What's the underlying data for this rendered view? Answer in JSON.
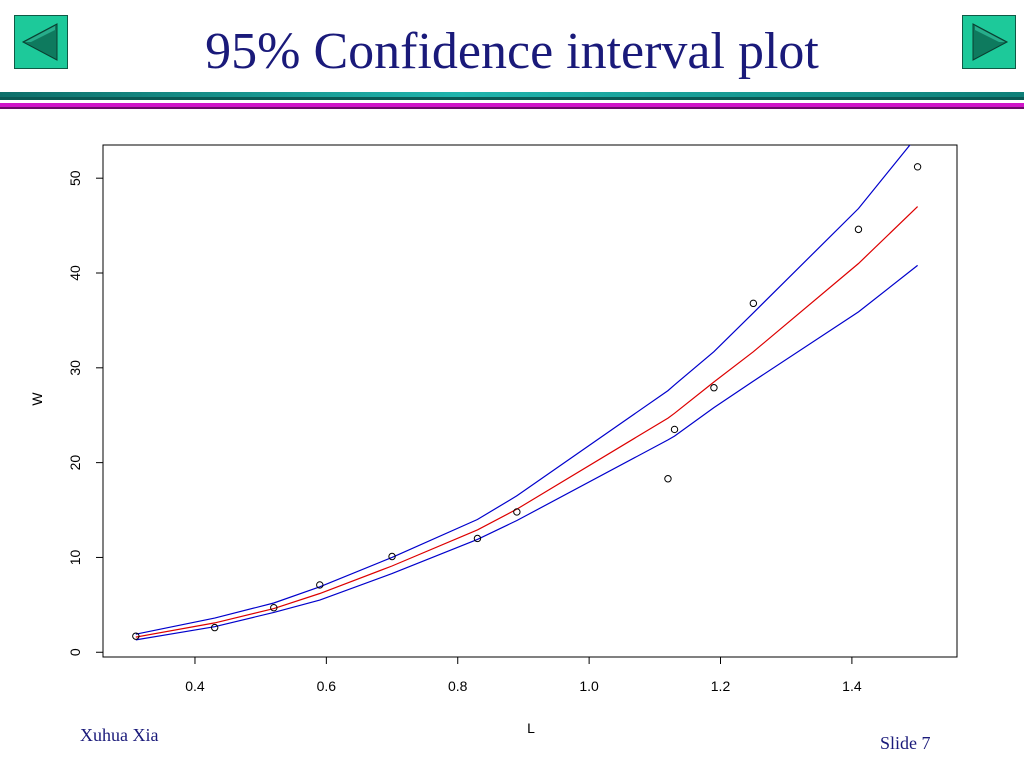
{
  "slide": {
    "title": "95% Confidence interval plot",
    "author": "Xuhua Xia",
    "slide_number": "Slide 7",
    "colors": {
      "title": "#1a1a7a",
      "nav_button": "#1dc99a",
      "nav_arrow": "#0e7a5e",
      "bar_teal": "#1fb5ad",
      "bar_magenta": "#d014c8"
    },
    "nav": {
      "prev_icon": "left-triangle-icon",
      "next_icon": "right-triangle-icon"
    }
  },
  "chart_data": {
    "type": "scatter",
    "title": "",
    "xlabel": "L",
    "ylabel": "W",
    "xlim": [
      0.26,
      1.56
    ],
    "ylim": [
      -0.5,
      53.5
    ],
    "xticks": [
      0.4,
      0.6,
      0.8,
      1.0,
      1.2,
      1.4
    ],
    "xtick_labels": [
      "0.4",
      "0.6",
      "0.8",
      "1.0",
      "1.2",
      "1.4"
    ],
    "yticks": [
      0,
      10,
      20,
      30,
      40,
      50
    ],
    "ytick_labels": [
      "0",
      "10",
      "20",
      "30",
      "40",
      "50"
    ],
    "grid": false,
    "legend": "none",
    "points": [
      {
        "x": 0.31,
        "y": 1.7
      },
      {
        "x": 0.43,
        "y": 2.6
      },
      {
        "x": 0.52,
        "y": 4.7
      },
      {
        "x": 0.59,
        "y": 7.1
      },
      {
        "x": 0.7,
        "y": 10.1
      },
      {
        "x": 0.83,
        "y": 12.0
      },
      {
        "x": 0.89,
        "y": 14.8
      },
      {
        "x": 1.12,
        "y": 18.3
      },
      {
        "x": 1.13,
        "y": 23.5
      },
      {
        "x": 1.19,
        "y": 27.9
      },
      {
        "x": 1.25,
        "y": 36.8
      },
      {
        "x": 1.41,
        "y": 44.6
      },
      {
        "x": 1.5,
        "y": 51.2
      }
    ],
    "series": [
      {
        "role": "upper 95% bound",
        "color": "#0000cc",
        "x": [
          0.31,
          0.43,
          0.52,
          0.59,
          0.7,
          0.83,
          0.89,
          1.12,
          1.13,
          1.19,
          1.25,
          1.41,
          1.5
        ],
        "y": [
          1.9,
          3.6,
          5.2,
          6.9,
          10.0,
          14.0,
          16.5,
          27.6,
          28.2,
          31.7,
          35.8,
          46.8,
          54.5
        ]
      },
      {
        "role": "fitted",
        "color": "#dd0000",
        "x": [
          0.31,
          0.43,
          0.52,
          0.59,
          0.7,
          0.83,
          0.89,
          1.12,
          1.13,
          1.19,
          1.25,
          1.41,
          1.5
        ],
        "y": [
          1.6,
          3.1,
          4.6,
          6.2,
          9.1,
          12.9,
          15.1,
          24.7,
          25.2,
          28.5,
          31.7,
          41.0,
          47.0
        ]
      },
      {
        "role": "lower 95% bound",
        "color": "#0000cc",
        "x": [
          0.31,
          0.43,
          0.52,
          0.59,
          0.7,
          0.83,
          0.89,
          1.12,
          1.13,
          1.19,
          1.25,
          1.41,
          1.5
        ],
        "y": [
          1.3,
          2.7,
          4.2,
          5.5,
          8.3,
          11.9,
          13.9,
          22.4,
          22.8,
          25.8,
          28.6,
          35.9,
          40.8
        ]
      }
    ]
  }
}
